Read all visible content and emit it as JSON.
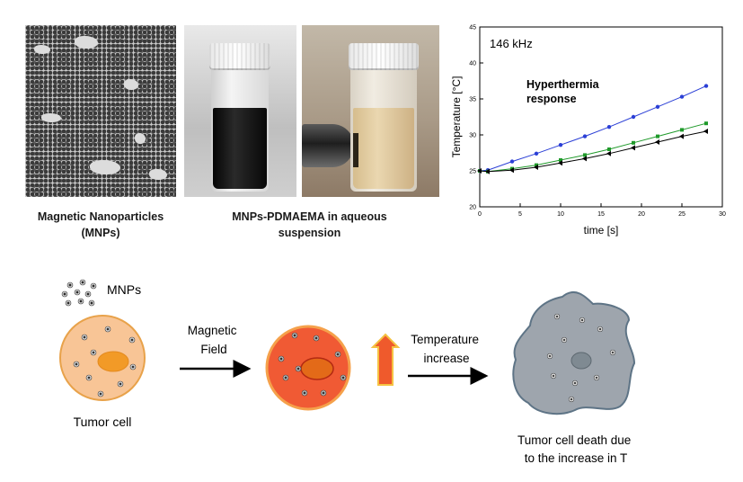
{
  "captions": {
    "tem": "Magnetic Nanoparticles (MNPs)",
    "vials": "MNPs-PDMAEMA in aqueous suspension"
  },
  "chart_data": {
    "type": "line",
    "title": "146 kHz",
    "annotation": "Hyperthermia response",
    "xlabel": "time [s]",
    "ylabel": "Temperature [°C]",
    "xlim": [
      0,
      30
    ],
    "ylim": [
      20,
      45
    ],
    "xticks": [
      "0",
      "5",
      "10",
      "15",
      "20",
      "25",
      "30"
    ],
    "yticks": [
      "20",
      "25",
      "30",
      "35",
      "40",
      "45"
    ],
    "series": [
      {
        "color": "#2b3fd6",
        "marker": "circle",
        "x": [
          0,
          1,
          4,
          7,
          10,
          13,
          16,
          19,
          22,
          25,
          28
        ],
        "y": [
          25.0,
          25.1,
          26.3,
          27.4,
          28.6,
          29.8,
          31.1,
          32.5,
          33.9,
          35.3,
          36.8
        ]
      },
      {
        "color": "#1f9a2a",
        "marker": "square",
        "x": [
          0,
          1,
          4,
          7,
          10,
          13,
          16,
          19,
          22,
          25,
          28
        ],
        "y": [
          25.0,
          24.9,
          25.3,
          25.8,
          26.5,
          27.2,
          28.0,
          28.9,
          29.8,
          30.7,
          31.6
        ]
      },
      {
        "color": "#000000",
        "marker": "triangle-left",
        "x": [
          0,
          1,
          4,
          7,
          10,
          13,
          16,
          19,
          22,
          25,
          28
        ],
        "y": [
          25.0,
          24.9,
          25.1,
          25.5,
          26.1,
          26.7,
          27.4,
          28.2,
          29.0,
          29.8,
          30.5
        ]
      }
    ]
  },
  "diagram": {
    "mnps_label": "MNPs",
    "step1_label": "Tumor cell",
    "arrow1_label": "Magnetic Field",
    "arrow2_label": "Temperature increase",
    "result_label": "Tumor cell death due to the increase in T"
  },
  "colors": {
    "healthy_cell": "#f8c596",
    "healthy_border": "#e8a24a",
    "heated_cell": "#f05a34",
    "heated_border": "#f5a14b",
    "nucleus": "#f29a27",
    "dead_cell": "#9ea5ad",
    "dead_border": "#5e7486",
    "up_arrow": "#ef5a2c"
  }
}
